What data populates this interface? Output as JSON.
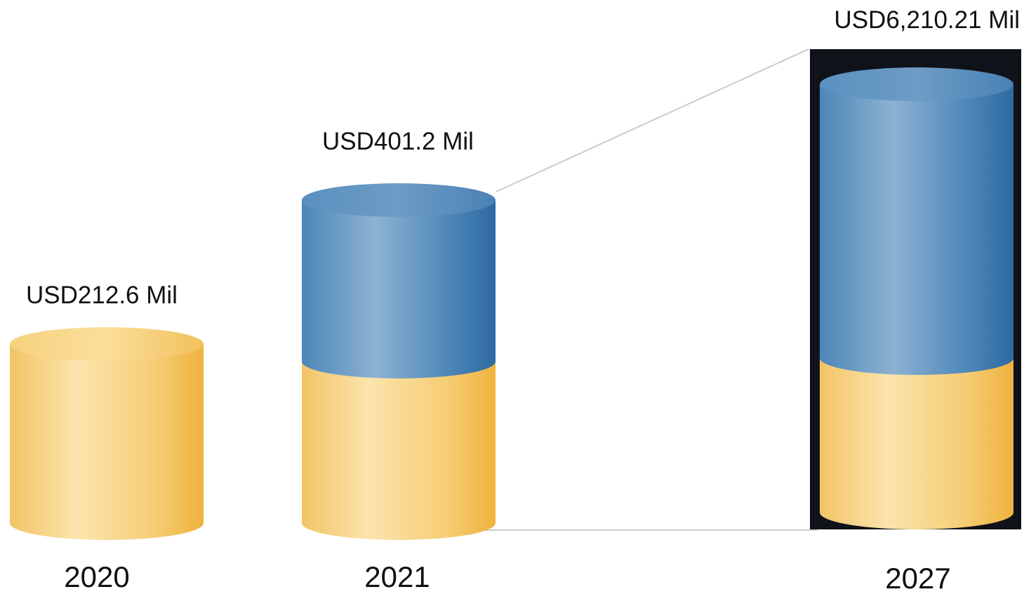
{
  "chart_data": {
    "type": "bar",
    "style": "3d-cylinder",
    "categories": [
      "2020",
      "2021",
      "2027"
    ],
    "values": [
      212.6,
      401.2,
      6210.21
    ],
    "value_labels": [
      "USD212.6 Mil",
      "USD401.2 Mil",
      "USD6,210.21 Mil"
    ],
    "title": "",
    "xlabel": "",
    "ylabel": "",
    "grid": false,
    "legend": "none",
    "colors": {
      "base": "#f5c35a",
      "base_light": "#fbe6b0",
      "growth": "#3f7db3",
      "growth_light": "#8fb4d3",
      "panel": "#10121a",
      "connector": "#cccccc"
    }
  }
}
